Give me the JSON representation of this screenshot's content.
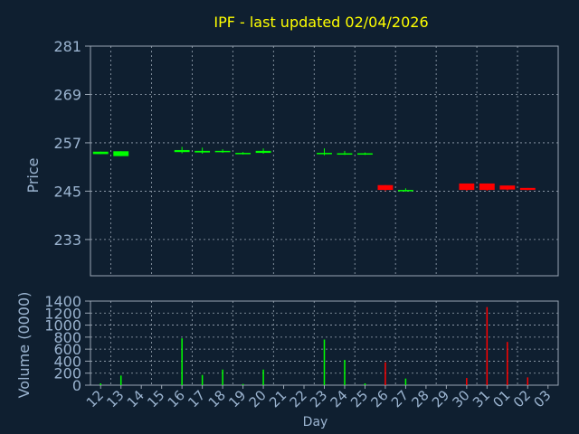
{
  "chart_data": [
    {
      "type": "candlestick",
      "title": "IPF - last updated 02/04/2026",
      "ylabel": "Price",
      "ylim": [
        224,
        281
      ],
      "yticks": [
        233,
        245,
        257,
        269,
        281
      ],
      "grid": true,
      "categories": [
        "12",
        "13",
        "14",
        "15",
        "16",
        "17",
        "18",
        "19",
        "20",
        "21",
        "22",
        "23",
        "24",
        "25",
        "26",
        "27",
        "28",
        "29",
        "30",
        "31",
        "01",
        "02",
        "03"
      ],
      "candles": [
        {
          "day": "12",
          "open": 254.2,
          "close": 254.8,
          "high": 254.8,
          "low": 254.2,
          "direction": "up"
        },
        {
          "day": "13",
          "open": 253.7,
          "close": 254.9,
          "high": 254.9,
          "low": 253.7,
          "direction": "up"
        },
        {
          "day": "16",
          "open": 254.7,
          "close": 255.2,
          "high": 256.0,
          "low": 254.4,
          "direction": "up"
        },
        {
          "day": "17",
          "open": 254.6,
          "close": 255.0,
          "high": 255.8,
          "low": 254.3,
          "direction": "up"
        },
        {
          "day": "18",
          "open": 254.7,
          "close": 255.0,
          "high": 255.4,
          "low": 254.5,
          "direction": "up"
        },
        {
          "day": "19",
          "open": 254.2,
          "close": 254.5,
          "high": 254.7,
          "low": 254.1,
          "direction": "up"
        },
        {
          "day": "20",
          "open": 254.5,
          "close": 255.0,
          "high": 255.6,
          "low": 254.3,
          "direction": "up"
        },
        {
          "day": "23",
          "open": 254.2,
          "close": 254.5,
          "high": 255.6,
          "low": 253.9,
          "direction": "up"
        },
        {
          "day": "24",
          "open": 254.1,
          "close": 254.4,
          "high": 255.0,
          "low": 254.0,
          "direction": "up"
        },
        {
          "day": "25",
          "open": 254.1,
          "close": 254.4,
          "high": 254.6,
          "low": 254.0,
          "direction": "up"
        },
        {
          "day": "26",
          "open": 246.5,
          "close": 245.3,
          "high": 246.5,
          "low": 245.0,
          "direction": "down"
        },
        {
          "day": "27",
          "open": 245.0,
          "close": 245.3,
          "high": 245.7,
          "low": 244.9,
          "direction": "up"
        },
        {
          "day": "30",
          "open": 246.9,
          "close": 245.3,
          "high": 246.9,
          "low": 245.1,
          "direction": "down"
        },
        {
          "day": "31",
          "open": 246.9,
          "close": 245.3,
          "high": 246.9,
          "low": 245.1,
          "direction": "down"
        },
        {
          "day": "01",
          "open": 246.4,
          "close": 245.4,
          "high": 246.4,
          "low": 245.2,
          "direction": "down"
        },
        {
          "day": "02",
          "open": 245.8,
          "close": 245.3,
          "high": 245.8,
          "low": 245.2,
          "direction": "down"
        }
      ]
    },
    {
      "type": "bar",
      "ylabel": "Volume (0000)",
      "xlabel": "Day",
      "ylim": [
        0,
        1400
      ],
      "yticks": [
        0,
        200,
        400,
        600,
        800,
        1000,
        1200,
        1400
      ],
      "grid": true,
      "categories": [
        "12",
        "13",
        "14",
        "15",
        "16",
        "17",
        "18",
        "19",
        "20",
        "21",
        "22",
        "23",
        "24",
        "25",
        "26",
        "27",
        "28",
        "29",
        "30",
        "31",
        "01",
        "02",
        "03"
      ],
      "values": [
        {
          "day": "12",
          "value": 30,
          "direction": "up"
        },
        {
          "day": "13",
          "value": 160,
          "direction": "up"
        },
        {
          "day": "16",
          "value": 780,
          "direction": "up"
        },
        {
          "day": "17",
          "value": 170,
          "direction": "up"
        },
        {
          "day": "18",
          "value": 260,
          "direction": "up"
        },
        {
          "day": "19",
          "value": 20,
          "direction": "up"
        },
        {
          "day": "20",
          "value": 260,
          "direction": "up"
        },
        {
          "day": "23",
          "value": 760,
          "direction": "up"
        },
        {
          "day": "24",
          "value": 420,
          "direction": "up"
        },
        {
          "day": "25",
          "value": 30,
          "direction": "up"
        },
        {
          "day": "26",
          "value": 380,
          "direction": "down"
        },
        {
          "day": "27",
          "value": 110,
          "direction": "up"
        },
        {
          "day": "30",
          "value": 120,
          "direction": "down"
        },
        {
          "day": "31",
          "value": 1300,
          "direction": "down"
        },
        {
          "day": "01",
          "value": 720,
          "direction": "down"
        },
        {
          "day": "02",
          "value": 130,
          "direction": "down"
        }
      ]
    }
  ],
  "colors": {
    "background": "#0f1f30",
    "text": "#9bb4d0",
    "title": "#ffff00",
    "grid": "#9aa6b4",
    "up": "#00ff00",
    "down": "#ff0000"
  }
}
